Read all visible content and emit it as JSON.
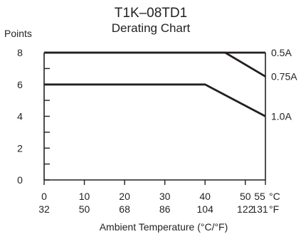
{
  "chart_data": {
    "type": "line",
    "title": "T1K–08TD1",
    "subtitle": "Derating Chart",
    "ylabel": "Points",
    "xlabel": "Ambient Temperature (°C/°F)",
    "xlim": [
      0,
      55
    ],
    "ylim": [
      0,
      8
    ],
    "y_ticks": [
      0,
      2,
      4,
      6,
      8
    ],
    "y_tick_labels": [
      "0",
      "2",
      "4",
      "6",
      "8"
    ],
    "y_minor_ticks": [
      1,
      3,
      5,
      7
    ],
    "x_ticks": [
      0,
      10,
      20,
      30,
      40,
      50,
      55
    ],
    "x_tick_labels_c": [
      "0",
      "10",
      "20",
      "30",
      "40",
      "50",
      "55"
    ],
    "x_tick_labels_f": [
      "32",
      "50",
      "68",
      "86",
      "104",
      "122",
      "131"
    ],
    "x_unit_c": "°C",
    "x_unit_f": "°F",
    "grid": false,
    "line_color": "#231f20",
    "series": [
      {
        "name": "0.5A",
        "x": [
          0,
          55
        ],
        "y": [
          8,
          8
        ]
      },
      {
        "name": "0.75A",
        "x": [
          0,
          45,
          55
        ],
        "y": [
          8,
          8,
          6.5
        ]
      },
      {
        "name": "1.0A",
        "x": [
          0,
          40,
          55
        ],
        "y": [
          6,
          6,
          4
        ]
      }
    ]
  }
}
